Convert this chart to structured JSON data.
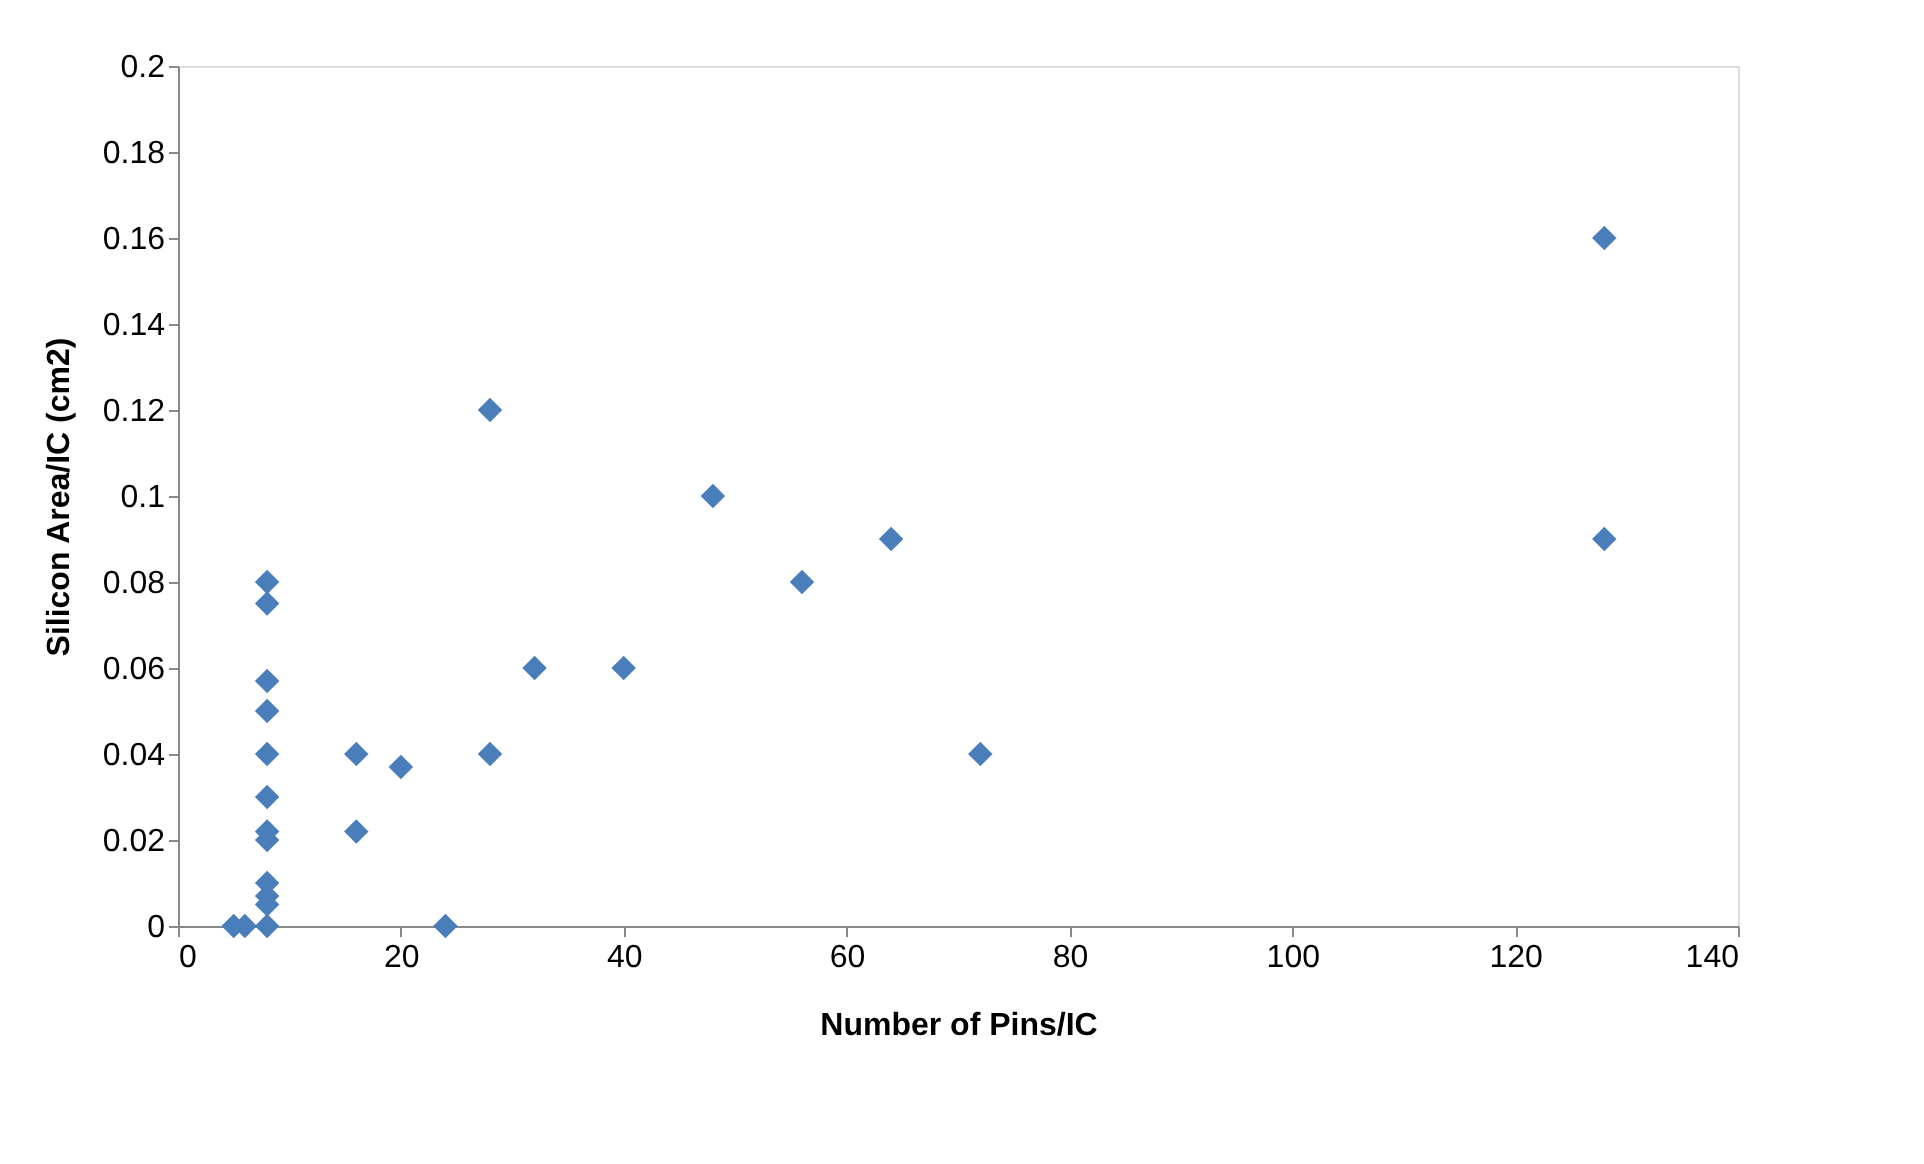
{
  "chart_data": {
    "type": "scatter",
    "xlabel": "Number of Pins/IC",
    "ylabel": "Silicon Area/IC (cm2)",
    "marker": "diamond",
    "grid": false,
    "legend": false,
    "xlim": [
      0,
      140
    ],
    "xticks": [
      0,
      20,
      40,
      60,
      80,
      100,
      120,
      140
    ],
    "ylim": [
      0,
      0.2
    ],
    "yticks": [
      0,
      0.02,
      0.04,
      0.06,
      0.08,
      0.1,
      0.12,
      0.14,
      0.16,
      0.18,
      0.2
    ],
    "series": [
      {
        "color": "#4a7ebb",
        "x": [
          5,
          6,
          8,
          8,
          8,
          8,
          8,
          8,
          8,
          8,
          8,
          8,
          8,
          8,
          16,
          16,
          20,
          24,
          28,
          28,
          32,
          40,
          48,
          56,
          64,
          72,
          128,
          128
        ],
        "values": [
          0,
          0,
          0,
          0.005,
          0.007,
          0.01,
          0.02,
          0.022,
          0.03,
          0.04,
          0.05,
          0.057,
          0.075,
          0.08,
          0.04,
          0.022,
          0.037,
          0,
          0.12,
          0.04,
          0.06,
          0.06,
          0.1,
          0.08,
          0.09,
          0.04,
          0.16,
          0.09
        ]
      }
    ]
  }
}
